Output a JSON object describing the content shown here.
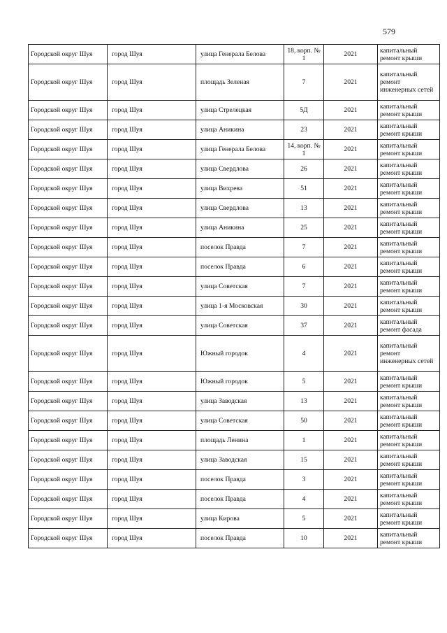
{
  "page_number": "579",
  "rows": [
    {
      "district": "Городской округ Шуя",
      "city": "город Шуя",
      "street": "улица Генерала Белова",
      "house": "18, корп. № 1",
      "year": "2021",
      "work": "капитальный ремонт крыши"
    },
    {
      "district": "Городской округ Шуя",
      "city": "город Шуя",
      "street": "площадь Зеленая",
      "house": "7",
      "year": "2021",
      "work": "капитальный ремонт инженерных сетей"
    },
    {
      "district": "Городской округ Шуя",
      "city": "город Шуя",
      "street": "улица Стрелецкая",
      "house": "5Д",
      "year": "2021",
      "work": "капитальный ремонт крыши"
    },
    {
      "district": "Городской округ Шуя",
      "city": "город Шуя",
      "street": "улица Аникина",
      "house": "23",
      "year": "2021",
      "work": "капитальный ремонт крыши"
    },
    {
      "district": "Городской округ Шуя",
      "city": "город Шуя",
      "street": "улица Генерала Белова",
      "house": "14, корп. № 1",
      "year": "2021",
      "work": "капитальный ремонт крыши"
    },
    {
      "district": "Городской округ Шуя",
      "city": "город Шуя",
      "street": "улица Свердлова",
      "house": "26",
      "year": "2021",
      "work": "капитальный ремонт крыши"
    },
    {
      "district": "Городской округ Шуя",
      "city": "город Шуя",
      "street": "улица Вихрева",
      "house": "51",
      "year": "2021",
      "work": "капитальный ремонт крыши"
    },
    {
      "district": "Городской округ Шуя",
      "city": "город Шуя",
      "street": "улица Свердлова",
      "house": "13",
      "year": "2021",
      "work": "капитальный ремонт крыши"
    },
    {
      "district": "Городской округ Шуя",
      "city": "город Шуя",
      "street": "улица Аникина",
      "house": "25",
      "year": "2021",
      "work": "капитальный ремонт крыши"
    },
    {
      "district": "Городской округ Шуя",
      "city": "город Шуя",
      "street": "поселок Правда",
      "house": "7",
      "year": "2021",
      "work": "капитальный ремонт крыши"
    },
    {
      "district": "Городской округ Шуя",
      "city": "город Шуя",
      "street": "поселок Правда",
      "house": "6",
      "year": "2021",
      "work": "капитальный ремонт крыши"
    },
    {
      "district": "Городской округ Шуя",
      "city": "город Шуя",
      "street": "улица Советская",
      "house": "7",
      "year": "2021",
      "work": "капитальный ремонт крыши"
    },
    {
      "district": "Городской округ Шуя",
      "city": "город Шуя",
      "street": "улица 1-я Московская",
      "house": "30",
      "year": "2021",
      "work": "капитальный ремонт крыши"
    },
    {
      "district": "Городской округ Шуя",
      "city": "город Шуя",
      "street": "улица Советская",
      "house": "37",
      "year": "2021",
      "work": "капитальный ремонт фасада"
    },
    {
      "district": "Городской округ Шуя",
      "city": "город Шуя",
      "street": "Южный городок",
      "house": "4",
      "year": "2021",
      "work": "капитальный ремонт инженерных сетей"
    },
    {
      "district": "Городской округ Шуя",
      "city": "город Шуя",
      "street": "Южный городок",
      "house": "5",
      "year": "2021",
      "work": "капитальный ремонт крыши"
    },
    {
      "district": "Городской округ Шуя",
      "city": "город Шуя",
      "street": "улица Заводская",
      "house": "13",
      "year": "2021",
      "work": "капитальный ремонт крыши"
    },
    {
      "district": "Городской округ Шуя",
      "city": "город Шуя",
      "street": "улица Советская",
      "house": "50",
      "year": "2021",
      "work": "капитальный ремонт крыши"
    },
    {
      "district": "Городской округ Шуя",
      "city": "город Шуя",
      "street": "площадь Ленина",
      "house": "1",
      "year": "2021",
      "work": "капитальный ремонт крыши"
    },
    {
      "district": "Городской округ Шуя",
      "city": "город Шуя",
      "street": "улица Заводская",
      "house": "15",
      "year": "2021",
      "work": "капитальный ремонт крыши"
    },
    {
      "district": "Городской округ Шуя",
      "city": "город Шуя",
      "street": "поселок Правда",
      "house": "3",
      "year": "2021",
      "work": "капитальный ремонт крыши"
    },
    {
      "district": "Городской округ Шуя",
      "city": "город Шуя",
      "street": "поселок Правда",
      "house": "4",
      "year": "2021",
      "work": "капитальный ремонт крыши"
    },
    {
      "district": "Городской округ Шуя",
      "city": "город Шуя",
      "street": "улица Кирова",
      "house": "5",
      "year": "2021",
      "work": "капитальный ремонт крыши"
    },
    {
      "district": "Городской округ Шуя",
      "city": "город Шуя",
      "street": "поселок Правда",
      "house": "10",
      "year": "2021",
      "work": "капитальный ремонт крыши"
    }
  ]
}
